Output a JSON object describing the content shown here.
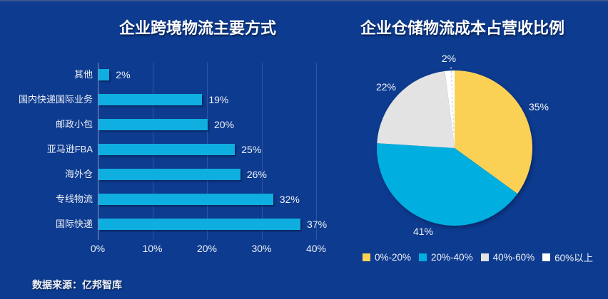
{
  "page": {
    "background": "#0D3B8F",
    "top_strip_color": "#3A568F",
    "text_color": "#EDF1F8",
    "gridline_color": "#2E57A3",
    "axis_line_color": "#8497C2"
  },
  "source_note": "数据来源：亿邦智库",
  "chart_data": [
    {
      "type": "bar",
      "orientation": "horizontal",
      "title": "企业跨境物流主要方式",
      "categories": [
        "其他",
        "国内快递国际业务",
        "邮政小包",
        "亚马逊FBA",
        "海外仓",
        "专线物流",
        "国际快递"
      ],
      "values": [
        2,
        19,
        20,
        25,
        26,
        32,
        37
      ],
      "value_labels": [
        "2%",
        "19%",
        "20%",
        "25%",
        "26%",
        "32%",
        "37%"
      ],
      "xlabel": "",
      "ylabel": "",
      "xlim": [
        0,
        40
      ],
      "x_ticks": [
        "0%",
        "10%",
        "20%",
        "30%",
        "40%"
      ],
      "x_tick_values": [
        0,
        10,
        20,
        30,
        40
      ],
      "grid": true,
      "bar_color": "#0FAEE0"
    },
    {
      "type": "pie",
      "title": "企业仓储物流成本占营收比例",
      "labels": [
        "0%-20%",
        "20%-40%",
        "40%-60%",
        "60%以上"
      ],
      "values": [
        35,
        41,
        22,
        2
      ],
      "value_labels": [
        "35%",
        "41%",
        "22%",
        "2%"
      ],
      "colors": [
        "#FBD155",
        "#00AEE0",
        "#E3E3E4",
        "#FFFFFF"
      ],
      "start_angle_deg": -90,
      "direction": "clockwise",
      "legend_position": "bottom"
    }
  ]
}
